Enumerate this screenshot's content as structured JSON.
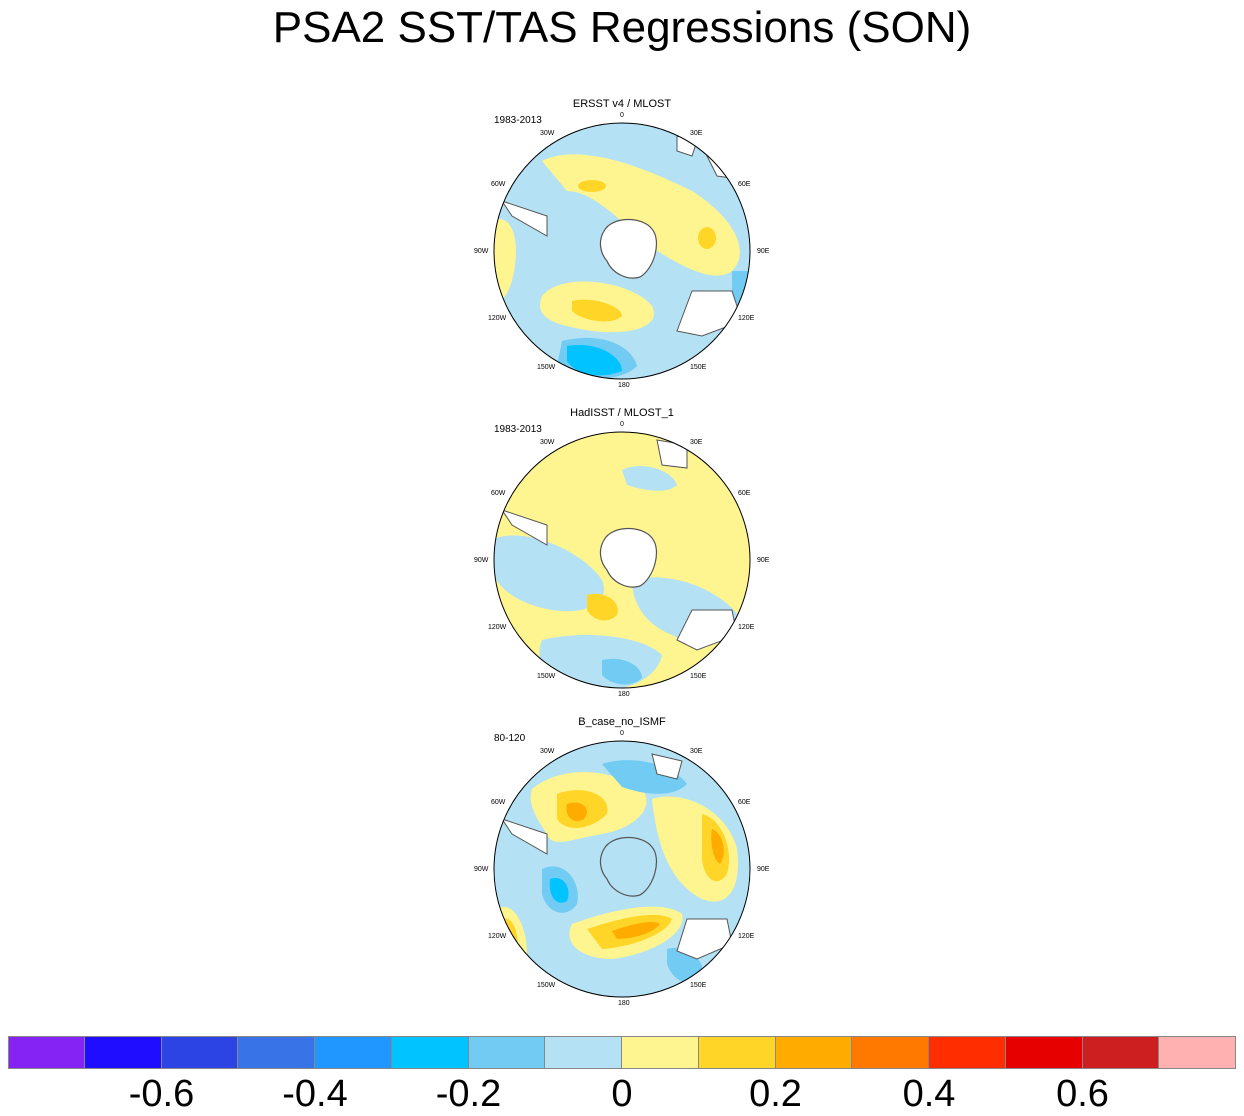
{
  "title": "PSA2 SST/TAS Regressions (SON)",
  "panels": [
    {
      "name": "ERSST v4 / MLOST",
      "years": "1983-2013"
    },
    {
      "name": "HadISST / MLOST_1",
      "years": "1983-2013"
    },
    {
      "name": "B_case_no_ISMF",
      "years": "80-120"
    }
  ],
  "lon_labels": {
    "l0": "0",
    "l30E": "30E",
    "l60E": "60E",
    "l90E": "90E",
    "l120E": "120E",
    "l150E": "150E",
    "l180": "180",
    "l150W": "150W",
    "l120W": "120W",
    "l90W": "90W",
    "l60W": "60W",
    "l30W": "30W"
  },
  "colorbar": {
    "colors": [
      "#8423f4",
      "#1e0dff",
      "#2c44e3",
      "#3874e8",
      "#1f97ff",
      "#00c3ff",
      "#71cbf3",
      "#b4e1f3",
      "#fff590",
      "#ffd527",
      "#ffab00",
      "#ff7800",
      "#ff2d00",
      "#e70000",
      "#cd1f1f",
      "#ffb1b1"
    ],
    "bounds": [
      -0.7,
      -0.6,
      -0.5,
      -0.4,
      -0.3,
      -0.2,
      -0.1,
      0,
      0.1,
      0.2,
      0.3,
      0.4,
      0.5,
      0.6,
      0.7
    ],
    "labels": [
      "-0.6",
      "-0.4",
      "-0.2",
      "0",
      "0.2",
      "0.4",
      "0.6"
    ]
  }
}
